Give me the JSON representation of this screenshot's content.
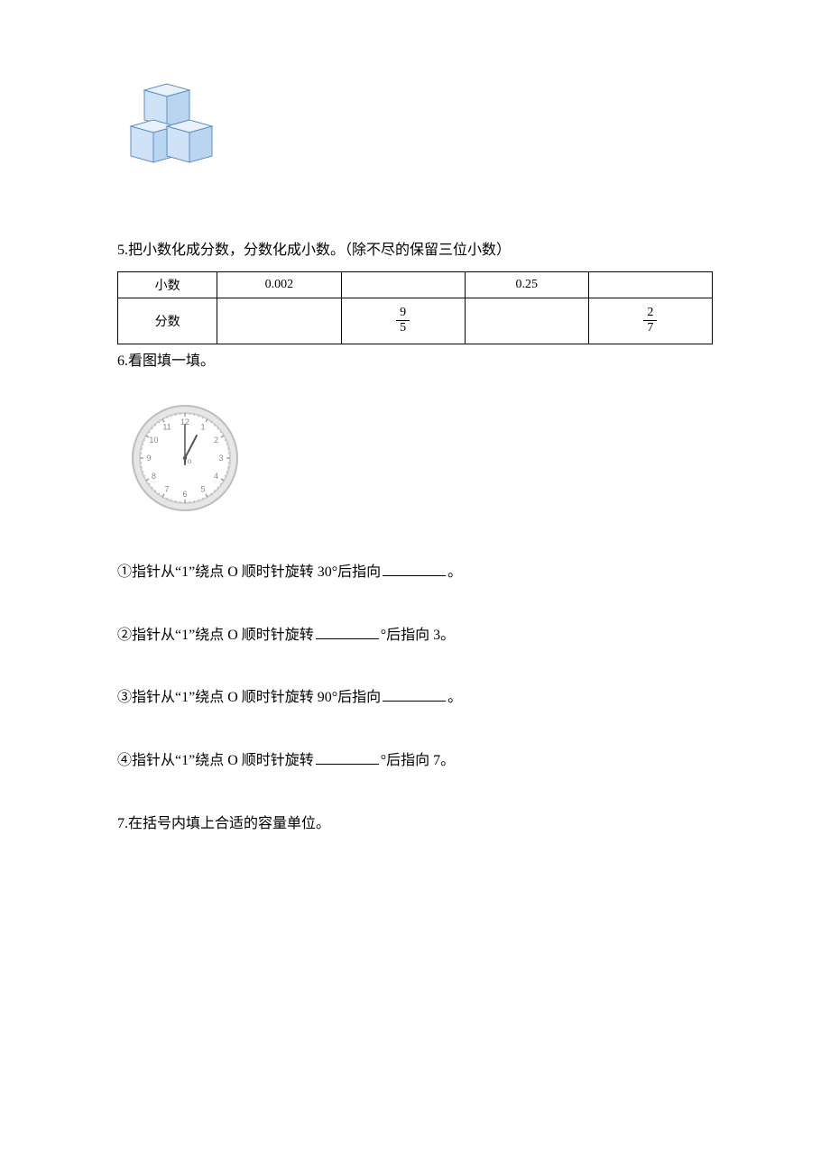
{
  "cube": {
    "stroke": "#5b8fc7",
    "fill_light": "#e9f2fb",
    "fill_mid": "#cfe2f6",
    "fill_dark": "#b9d5f0"
  },
  "q5": {
    "label": "5.把小数化成分数，分数化成小数。（除不尽的保留三位小数）",
    "row_dec_label": "小数",
    "row_frac_label": "分数",
    "dec1": "0.002",
    "dec2": "0.25",
    "frac1_num": "9",
    "frac1_den": "5",
    "frac2_num": "2",
    "frac2_den": "7"
  },
  "q6": {
    "label": "6.看图填一填。",
    "clock": {
      "face_fill": "#ffffff",
      "ring_outer": "#cfcfcf",
      "ring_inner": "#e6e6e6",
      "tick_color": "#9a9a9a",
      "num_color": "#888888",
      "hand_color": "#555555",
      "numbers": [
        "12",
        "1",
        "2",
        "3",
        "4",
        "5",
        "6",
        "7",
        "8",
        "9",
        "10",
        "11"
      ]
    },
    "item1_a": "①指针从“1”绕点 O 顺时针旋转 30°后指向",
    "item1_b": "。",
    "item2_a": "②指针从“1”绕点 O 顺时针旋转",
    "item2_b": "°后指向 3。",
    "item3_a": "③指针从“1”绕点 O 顺时针旋转 90°后指向",
    "item3_b": "。",
    "item4_a": "④指针从“1”绕点 O 顺时针旋转",
    "item4_b": "°后指向 7。"
  },
  "q7": {
    "label": "7.在括号内填上合适的容量单位。"
  }
}
